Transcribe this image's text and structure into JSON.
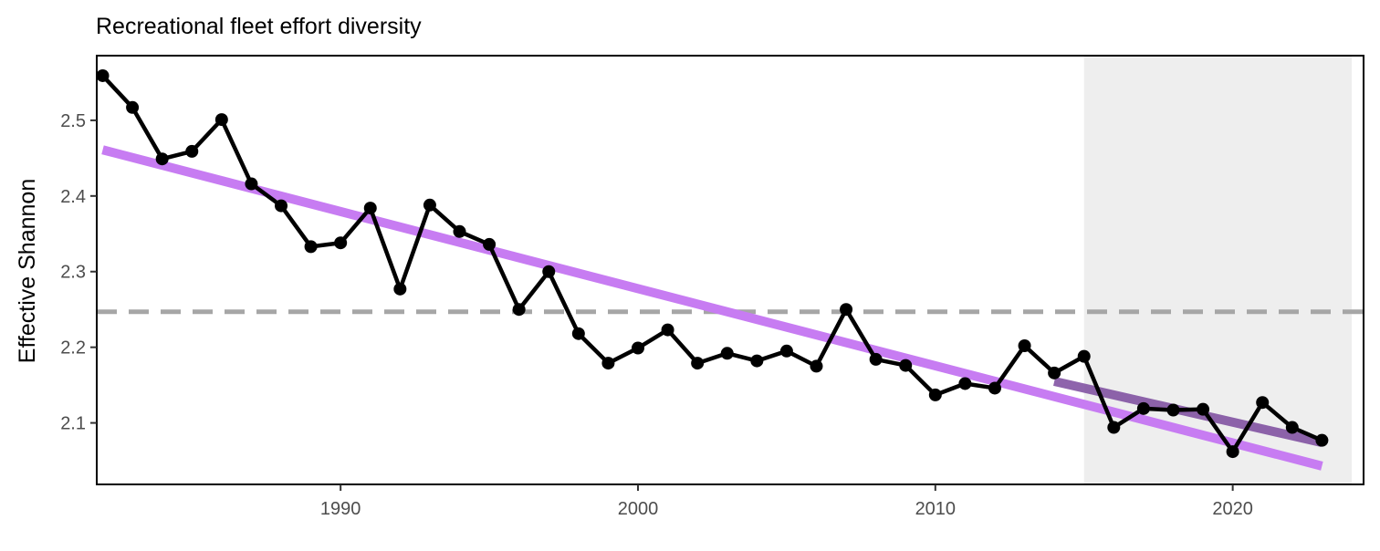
{
  "chart_data": {
    "type": "line",
    "title": "Recreational fleet effort diversity",
    "xlabel": "",
    "ylabel": "Effective Shannon",
    "xlim": [
      1981.8,
      2024.4
    ],
    "ylim": [
      2.0187,
      2.5855
    ],
    "x_ticks": [
      1990,
      2000,
      2010,
      2020
    ],
    "y_ticks": [
      2.1,
      2.2,
      2.3,
      2.4,
      2.5
    ],
    "x_tick_labels": [
      "1990",
      "2000",
      "2010",
      "2020"
    ],
    "y_tick_labels": [
      "2.1",
      "2.2",
      "2.3",
      "2.4",
      "2.5"
    ],
    "grid": false,
    "shaded_region": {
      "x_start": 2015,
      "x_end": 2024,
      "color": "#eeeeee"
    },
    "mean_line": {
      "y": 2.247,
      "color": "#a6a6a6",
      "style": "dashed"
    },
    "trend_full": {
      "x": [
        1982,
        2023
      ],
      "y": [
        2.461,
        2.043
      ],
      "color": "#c77cf2"
    },
    "trend_recent": {
      "x": [
        2014,
        2023
      ],
      "y": [
        2.155,
        2.074
      ],
      "color": "#7b4a9e"
    },
    "series": [
      {
        "color": "#000000",
        "x": [
          1982,
          1983,
          1984,
          1985,
          1986,
          1987,
          1988,
          1989,
          1990,
          1991,
          1992,
          1993,
          1994,
          1995,
          1996,
          1997,
          1998,
          1999,
          2000,
          2001,
          2002,
          2003,
          2004,
          2005,
          2006,
          2007,
          2008,
          2009,
          2010,
          2011,
          2012,
          2013,
          2014,
          2015,
          2016,
          2017,
          2018,
          2019,
          2020,
          2021,
          2022,
          2023
        ],
        "values": [
          2.559,
          2.517,
          2.449,
          2.459,
          2.501,
          2.416,
          2.387,
          2.333,
          2.338,
          2.384,
          2.277,
          2.388,
          2.353,
          2.336,
          2.25,
          2.3,
          2.218,
          2.179,
          2.199,
          2.223,
          2.179,
          2.192,
          2.182,
          2.195,
          2.175,
          2.25,
          2.184,
          2.176,
          2.137,
          2.152,
          2.146,
          2.202,
          2.166,
          2.188,
          2.094,
          2.119,
          2.117,
          2.118,
          2.062,
          2.127,
          2.094,
          2.077
        ]
      }
    ]
  }
}
